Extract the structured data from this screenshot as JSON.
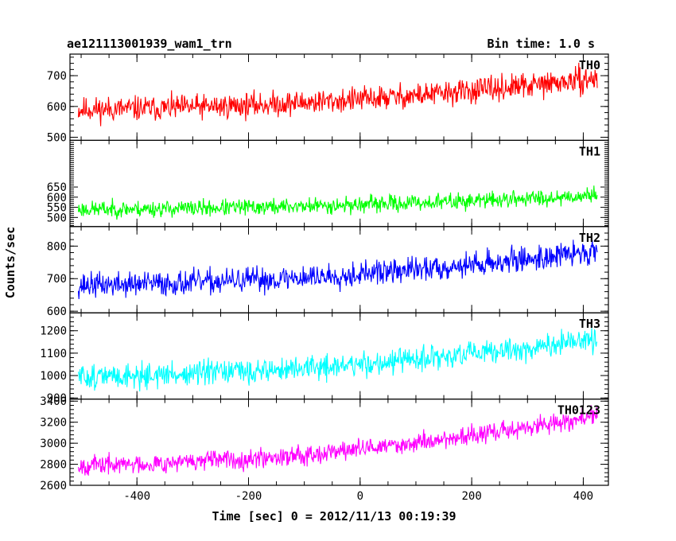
{
  "header": {
    "title": "ae121113001939_wam1_trn",
    "bin_time": "Bin time: 1.0 s"
  },
  "axes": {
    "xlabel": "Time [sec] 0 = 2012/11/13 00:19:39",
    "ylabel": "Counts/sec"
  },
  "chart_data": {
    "type": "line",
    "x_range": [
      -505,
      425
    ],
    "xlim": [
      -520,
      445
    ],
    "x_ticks": [
      -400,
      -200,
      0,
      200,
      400
    ],
    "x_tick_labels": [
      "-400",
      "-200",
      "0",
      "200",
      "400"
    ],
    "panels": [
      {
        "name": "TH0",
        "color": "#ff0000",
        "ylim": [
          490,
          770
        ],
        "y_ticks": [
          500,
          600,
          700
        ],
        "y_tick_labels": [
          "500",
          "600",
          "700"
        ],
        "start": 590,
        "end": 690,
        "noise": 40,
        "seed": 11
      },
      {
        "name": "TH1",
        "color": "#00ff00",
        "ylim": [
          455,
          880
        ],
        "y_ticks": [
          500,
          550,
          600,
          650
        ],
        "y_tick_labels": [
          "500",
          "550",
          "600",
          "650"
        ],
        "start": 540,
        "end": 610,
        "noise": 40,
        "seed": 23
      },
      {
        "name": "TH2",
        "color": "#0000ff",
        "ylim": [
          595,
          860
        ],
        "y_ticks": [
          600,
          700,
          800
        ],
        "y_tick_labels": [
          "600",
          "700",
          "800"
        ],
        "start": 680,
        "end": 785,
        "noise": 38,
        "seed": 37
      },
      {
        "name": "TH3",
        "color": "#00ffff",
        "ylim": [
          895,
          1280
        ],
        "y_ticks": [
          900,
          1000,
          1100,
          1200
        ],
        "y_tick_labels": [
          "900",
          "1000",
          "1100",
          "1200"
        ],
        "start": 995,
        "end": 1160,
        "noise": 55,
        "seed": 51
      },
      {
        "name": "TH0123",
        "color": "#ff00ff",
        "ylim": [
          2600,
          3420
        ],
        "y_ticks": [
          2600,
          2800,
          3000,
          3200,
          3400
        ],
        "y_tick_labels": [
          "2600",
          "2800",
          "3000",
          "3200",
          "3400"
        ],
        "start": 2790,
        "end": 3260,
        "noise": 90,
        "seed": 67
      }
    ]
  }
}
